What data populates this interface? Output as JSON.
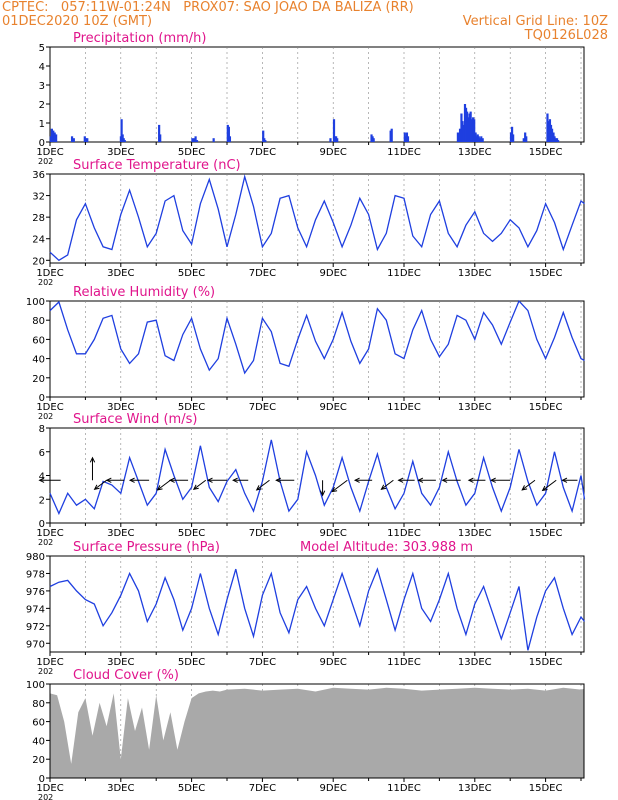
{
  "header": {
    "line1_left": "CPTEC:   057:11W-01:24N   PROX07: SAO JOAO DA BALIZA (RR)",
    "line2_left": "01DEC2020 10Z (GMT)",
    "line2_right": "Vertical Grid Line: 10Z",
    "line3_right": "TQ0126L028"
  },
  "colors": {
    "header": "#e8822e",
    "panel_title": "#e0158c",
    "series": "#1f3fe0",
    "cloud": "#a9a9a9",
    "arrow": "#000000"
  },
  "x_axis": {
    "tick_labels": [
      "1DEC",
      "3DEC",
      "5DEC",
      "7DEC",
      "9DEC",
      "11DEC",
      "13DEC",
      "15DEC"
    ],
    "sub_label": "202"
  },
  "model_altitude": "Model Altitude: 303.988  m",
  "chart_data": [
    {
      "type": "bar",
      "title": "Precipitation  (mm/h)",
      "ylim": [
        0,
        5
      ],
      "y_ticks": [
        0,
        1,
        2,
        3,
        4,
        5
      ],
      "xlim_days": [
        0,
        15.1
      ],
      "grid": "dashed vertical at 10Z",
      "x": [
        0.02,
        0.05,
        0.09,
        0.13,
        0.17,
        0.62,
        0.67,
        0.98,
        1.02,
        1.05,
        2.0,
        2.02,
        2.05,
        2.08,
        2.11,
        3.08,
        3.11,
        4.02,
        4.05,
        4.08,
        4.11,
        4.15,
        4.62,
        5.02,
        5.05,
        5.08,
        6.02,
        6.05,
        6.08,
        7.92,
        8.02,
        8.05,
        8.08,
        8.11,
        9.08,
        9.11,
        9.14,
        9.62,
        9.65,
        10.02,
        10.05,
        10.08,
        10.11,
        11.52,
        11.55,
        11.58,
        11.62,
        11.65,
        11.68,
        11.72,
        11.75,
        11.78,
        11.82,
        11.85,
        11.88,
        11.92,
        11.95,
        11.98,
        12.02,
        12.05,
        12.08,
        12.11,
        12.15,
        12.18,
        12.22,
        13.02,
        13.05,
        13.08,
        13.38,
        13.42,
        13.45,
        14.05,
        14.08,
        14.12,
        14.15,
        14.18,
        14.22,
        14.25,
        14.28,
        14.32,
        14.35
      ],
      "values": [
        0.3,
        0.7,
        0.6,
        0.5,
        0.4,
        0.3,
        0.2,
        0.3,
        0.2,
        0.2,
        0.3,
        1.2,
        0.4,
        0.2,
        0.1,
        0.9,
        0.4,
        0.2,
        0.1,
        0.2,
        0.3,
        0.1,
        0.2,
        0.9,
        0.8,
        0.3,
        0.6,
        0.2,
        0.1,
        0.2,
        1.2,
        0.3,
        0.3,
        0.2,
        0.4,
        0.3,
        0.2,
        0.6,
        0.7,
        0.5,
        0.3,
        0.5,
        0.3,
        0.5,
        0.5,
        0.7,
        1.5,
        1.1,
        0.9,
        2.0,
        1.8,
        1.6,
        1.3,
        1.5,
        1.6,
        1.2,
        1.3,
        1.2,
        0.5,
        0.3,
        0.4,
        0.3,
        0.2,
        0.3,
        0.2,
        0.5,
        0.8,
        0.4,
        0.2,
        0.5,
        0.3,
        1.5,
        1.1,
        1.2,
        0.9,
        0.7,
        0.5,
        0.3,
        0.2,
        0.2,
        0.1
      ]
    },
    {
      "type": "line",
      "title": "Surface Temperature (nC)",
      "ylim": [
        19.5,
        36
      ],
      "y_ticks": [
        20,
        24,
        28,
        32,
        36
      ],
      "xlim_days": [
        0,
        15.1
      ],
      "x": [
        0,
        0.25,
        0.5,
        0.75,
        1,
        1.25,
        1.5,
        1.75,
        2,
        2.25,
        2.5,
        2.75,
        3,
        3.25,
        3.5,
        3.75,
        4,
        4.25,
        4.5,
        4.75,
        5,
        5.25,
        5.5,
        5.75,
        6,
        6.25,
        6.5,
        6.75,
        7,
        7.25,
        7.5,
        7.75,
        8,
        8.25,
        8.5,
        8.75,
        9,
        9.25,
        9.5,
        9.75,
        10,
        10.25,
        10.5,
        10.75,
        11,
        11.25,
        11.5,
        11.75,
        12,
        12.25,
        12.5,
        12.75,
        13,
        13.25,
        13.5,
        13.75,
        14,
        14.25,
        14.5,
        14.75,
        15,
        15.1
      ],
      "values": [
        21.5,
        20.0,
        21.0,
        27.5,
        30.5,
        26.0,
        22.5,
        22.0,
        28.5,
        33.0,
        28.0,
        22.5,
        25.0,
        31.0,
        32.0,
        25.5,
        23.0,
        30.5,
        35.0,
        29.5,
        22.5,
        28.5,
        35.5,
        30.0,
        22.5,
        25.0,
        31.5,
        32.0,
        26.0,
        22.5,
        27.5,
        31.0,
        27.0,
        22.5,
        26.5,
        31.5,
        28.5,
        22.0,
        25.0,
        32.0,
        31.5,
        24.5,
        22.5,
        28.5,
        31.0,
        25.0,
        22.5,
        26.5,
        29.0,
        25.0,
        23.5,
        25.0,
        27.5,
        26.0,
        22.5,
        25.5,
        30.5,
        27.0,
        22.0,
        26.5,
        31.0,
        30.5
      ]
    },
    {
      "type": "line",
      "title": "Relative Humidity  (%)",
      "ylim": [
        0,
        100
      ],
      "y_ticks": [
        0,
        20,
        40,
        60,
        80,
        100
      ],
      "xlim_days": [
        0,
        15.1
      ],
      "x": [
        0,
        0.25,
        0.5,
        0.75,
        1,
        1.25,
        1.5,
        1.75,
        2,
        2.25,
        2.5,
        2.75,
        3,
        3.25,
        3.5,
        3.75,
        4,
        4.25,
        4.5,
        4.75,
        5,
        5.25,
        5.5,
        5.75,
        6,
        6.25,
        6.5,
        6.75,
        7,
        7.25,
        7.5,
        7.75,
        8,
        8.25,
        8.5,
        8.75,
        9,
        9.25,
        9.5,
        9.75,
        10,
        10.25,
        10.5,
        10.75,
        11,
        11.25,
        11.5,
        11.75,
        12,
        12.25,
        12.5,
        12.75,
        13,
        13.25,
        13.5,
        13.75,
        14,
        14.25,
        14.5,
        14.75,
        15,
        15.1
      ],
      "values": [
        90,
        99,
        70,
        45,
        45,
        60,
        82,
        85,
        50,
        35,
        45,
        78,
        80,
        43,
        38,
        65,
        82,
        50,
        28,
        40,
        82,
        55,
        25,
        38,
        82,
        68,
        35,
        32,
        60,
        85,
        58,
        40,
        60,
        88,
        58,
        35,
        50,
        92,
        80,
        45,
        40,
        70,
        90,
        60,
        42,
        55,
        85,
        80,
        60,
        88,
        75,
        55,
        78,
        100,
        90,
        60,
        40,
        62,
        88,
        62,
        40,
        38
      ]
    },
    {
      "type": "line",
      "title": "Surface Wind  (m/s)",
      "ylim": [
        0,
        8
      ],
      "y_ticks": [
        0,
        2,
        4,
        6,
        8
      ],
      "xlim_days": [
        0,
        15.1
      ],
      "x": [
        0,
        0.25,
        0.5,
        0.75,
        1,
        1.25,
        1.5,
        1.75,
        2,
        2.25,
        2.5,
        2.75,
        3,
        3.25,
        3.5,
        3.75,
        4,
        4.25,
        4.5,
        4.75,
        5,
        5.25,
        5.5,
        5.75,
        6,
        6.25,
        6.5,
        6.75,
        7,
        7.25,
        7.5,
        7.75,
        8,
        8.25,
        8.5,
        8.75,
        9,
        9.25,
        9.5,
        9.75,
        10,
        10.25,
        10.5,
        10.75,
        11,
        11.25,
        11.5,
        11.75,
        12,
        12.25,
        12.5,
        12.75,
        13,
        13.25,
        13.5,
        13.75,
        14,
        14.25,
        14.5,
        14.75,
        15,
        15.1
      ],
      "values": [
        2.5,
        0.8,
        2.5,
        1.5,
        2.0,
        1.2,
        3.5,
        3.2,
        2.5,
        5.5,
        3.5,
        1.5,
        2.5,
        6.2,
        4.0,
        2.0,
        3.0,
        6.5,
        3.0,
        1.8,
        3.5,
        4.5,
        2.5,
        1.0,
        3.5,
        7.0,
        3.5,
        1.0,
        2.0,
        6.0,
        4.0,
        1.5,
        3.0,
        5.5,
        3.0,
        1.0,
        3.5,
        5.8,
        3.0,
        1.2,
        2.5,
        5.2,
        2.5,
        1.5,
        3.0,
        6.0,
        3.5,
        1.5,
        2.5,
        5.5,
        3.0,
        1.0,
        3.0,
        6.2,
        3.5,
        1.5,
        2.5,
        6.0,
        3.0,
        1.0,
        4.0,
        2.0
      ],
      "arrows": [
        {
          "x": 0.3,
          "speed": 4.2,
          "to": "W"
        },
        {
          "x": 1.2,
          "speed": 4.5,
          "to": "N"
        },
        {
          "x": 1.6,
          "speed": 3.0,
          "to": "SW"
        },
        {
          "x": 2.1,
          "speed": 3.5,
          "to": "W"
        },
        {
          "x": 2.8,
          "speed": 3.8,
          "to": "W"
        },
        {
          "x": 3.4,
          "speed": 3.2,
          "to": "SW"
        },
        {
          "x": 3.9,
          "speed": 3.6,
          "to": "W"
        },
        {
          "x": 4.4,
          "speed": 3.0,
          "to": "SW"
        },
        {
          "x": 5.0,
          "speed": 3.8,
          "to": "W"
        },
        {
          "x": 5.6,
          "speed": 3.0,
          "to": "W"
        },
        {
          "x": 6.2,
          "speed": 3.2,
          "to": "SW"
        },
        {
          "x": 6.9,
          "speed": 3.6,
          "to": "W"
        },
        {
          "x": 7.7,
          "speed": 3.0,
          "to": "S"
        },
        {
          "x": 8.4,
          "speed": 3.8,
          "to": "SW"
        },
        {
          "x": 9.1,
          "speed": 3.4,
          "to": "W"
        },
        {
          "x": 9.7,
          "speed": 3.0,
          "to": "SW"
        },
        {
          "x": 10.3,
          "speed": 3.2,
          "to": "W"
        },
        {
          "x": 10.9,
          "speed": 3.5,
          "to": "W"
        },
        {
          "x": 11.6,
          "speed": 3.6,
          "to": "W"
        },
        {
          "x": 12.3,
          "speed": 3.3,
          "to": "W"
        },
        {
          "x": 13.0,
          "speed": 3.8,
          "to": "W"
        },
        {
          "x": 13.7,
          "speed": 3.2,
          "to": "SW"
        },
        {
          "x": 14.3,
          "speed": 3.4,
          "to": "SW"
        },
        {
          "x": 14.9,
          "speed": 3.0,
          "to": "W"
        }
      ]
    },
    {
      "type": "line",
      "title": "Surface Pressure (hPa)",
      "ylim": [
        969,
        980
      ],
      "y_ticks": [
        970,
        972,
        974,
        976,
        978,
        980
      ],
      "xlim_days": [
        0,
        15.1
      ],
      "x": [
        0,
        0.25,
        0.5,
        0.75,
        1,
        1.25,
        1.5,
        1.75,
        2,
        2.25,
        2.5,
        2.75,
        3,
        3.25,
        3.5,
        3.75,
        4,
        4.25,
        4.5,
        4.75,
        5,
        5.25,
        5.5,
        5.75,
        6,
        6.25,
        6.5,
        6.75,
        7,
        7.25,
        7.5,
        7.75,
        8,
        8.25,
        8.5,
        8.75,
        9,
        9.25,
        9.5,
        9.75,
        10,
        10.25,
        10.5,
        10.75,
        11,
        11.25,
        11.5,
        11.75,
        12,
        12.25,
        12.5,
        12.75,
        13,
        13.25,
        13.5,
        13.75,
        14,
        14.25,
        14.5,
        14.75,
        15,
        15.1
      ],
      "values": [
        976.5,
        977.0,
        977.2,
        976.0,
        975.0,
        974.5,
        972.0,
        973.5,
        975.5,
        978.0,
        976.0,
        972.5,
        974.5,
        977.5,
        975.0,
        971.5,
        974.0,
        978.0,
        974.0,
        971.0,
        975.0,
        978.5,
        974.0,
        970.8,
        975.5,
        978.0,
        973.5,
        971.2,
        975.0,
        976.5,
        974.0,
        972.0,
        975.0,
        978.0,
        975.0,
        972.0,
        976.0,
        978.5,
        975.0,
        971.5,
        975.0,
        978.0,
        974.0,
        972.5,
        975.0,
        978.0,
        974.0,
        971.0,
        974.5,
        976.5,
        973.5,
        970.5,
        973.5,
        976.5,
        969.2,
        973.0,
        976.0,
        977.5,
        974.0,
        971.0,
        973.0,
        972.5
      ]
    },
    {
      "type": "area",
      "title": "Cloud Cover  (%)",
      "ylim": [
        0,
        100
      ],
      "y_ticks": [
        0,
        20,
        40,
        60,
        80,
        100
      ],
      "xlim_days": [
        0,
        15.1
      ],
      "x": [
        0,
        0.2,
        0.4,
        0.6,
        0.8,
        1.0,
        1.2,
        1.4,
        1.6,
        1.8,
        2.0,
        2.2,
        2.4,
        2.6,
        2.8,
        3.0,
        3.2,
        3.4,
        3.6,
        3.8,
        4.0,
        4.2,
        4.4,
        4.6,
        4.8,
        5.0,
        5.5,
        6.0,
        6.5,
        7.0,
        7.5,
        8.0,
        8.5,
        9.0,
        9.5,
        10.0,
        10.5,
        11.0,
        11.5,
        12.0,
        12.5,
        13.0,
        13.5,
        14.0,
        14.5,
        15.0,
        15.1
      ],
      "values": [
        90,
        88,
        60,
        15,
        70,
        85,
        45,
        80,
        55,
        90,
        20,
        85,
        50,
        75,
        30,
        88,
        40,
        70,
        30,
        60,
        85,
        90,
        92,
        93,
        92,
        94,
        95,
        93,
        94,
        95,
        92,
        96,
        95,
        94,
        96,
        95,
        93,
        94,
        95,
        96,
        95,
        94,
        95,
        93,
        96,
        94,
        95
      ]
    }
  ]
}
